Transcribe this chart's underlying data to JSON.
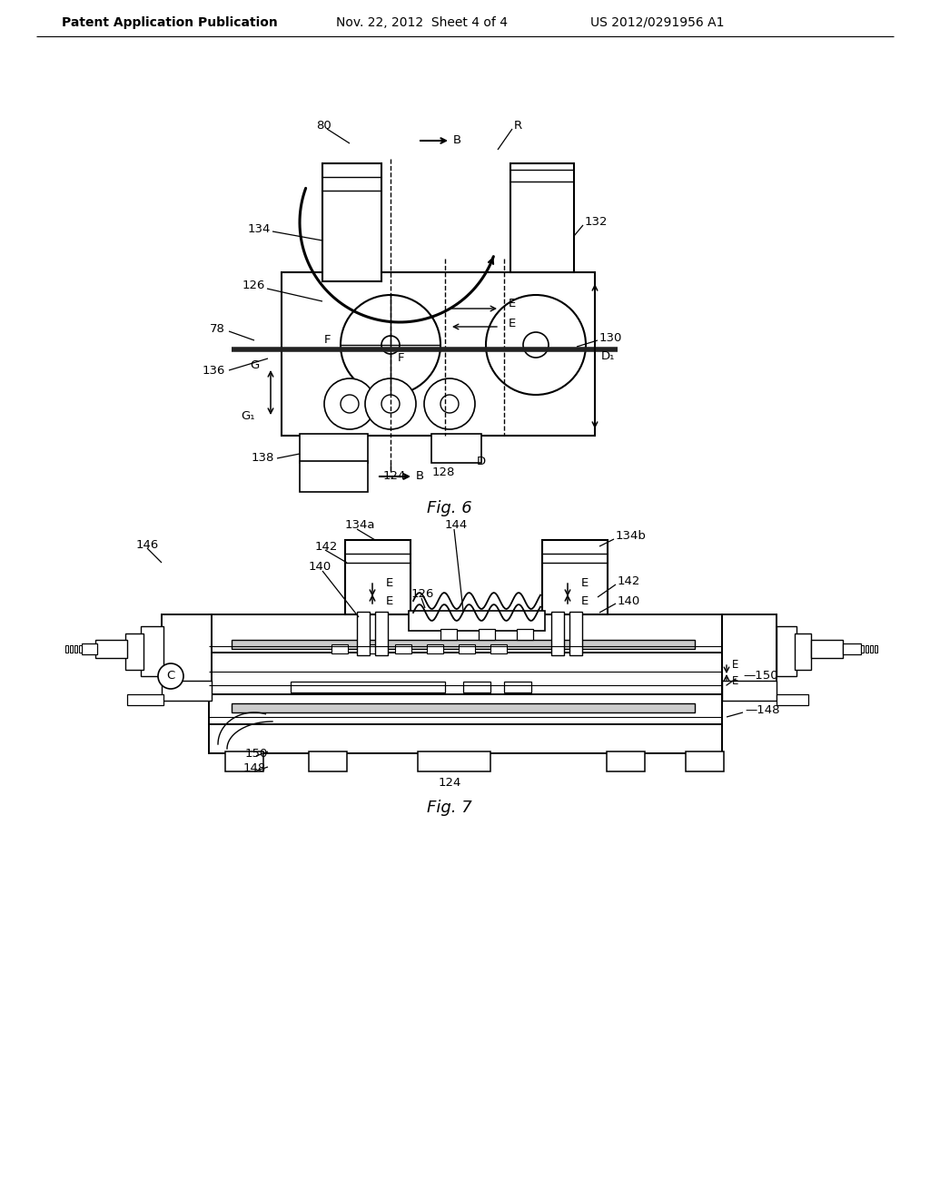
{
  "header_left": "Patent Application Publication",
  "header_mid": "Nov. 22, 2012  Sheet 4 of 4",
  "header_right": "US 2012/0291956 A1",
  "fig6_label": "Fig. 6",
  "fig7_label": "Fig. 7",
  "background_color": "#ffffff",
  "line_color": "#000000",
  "font_size_header": 11,
  "font_size_ref": 9.5
}
